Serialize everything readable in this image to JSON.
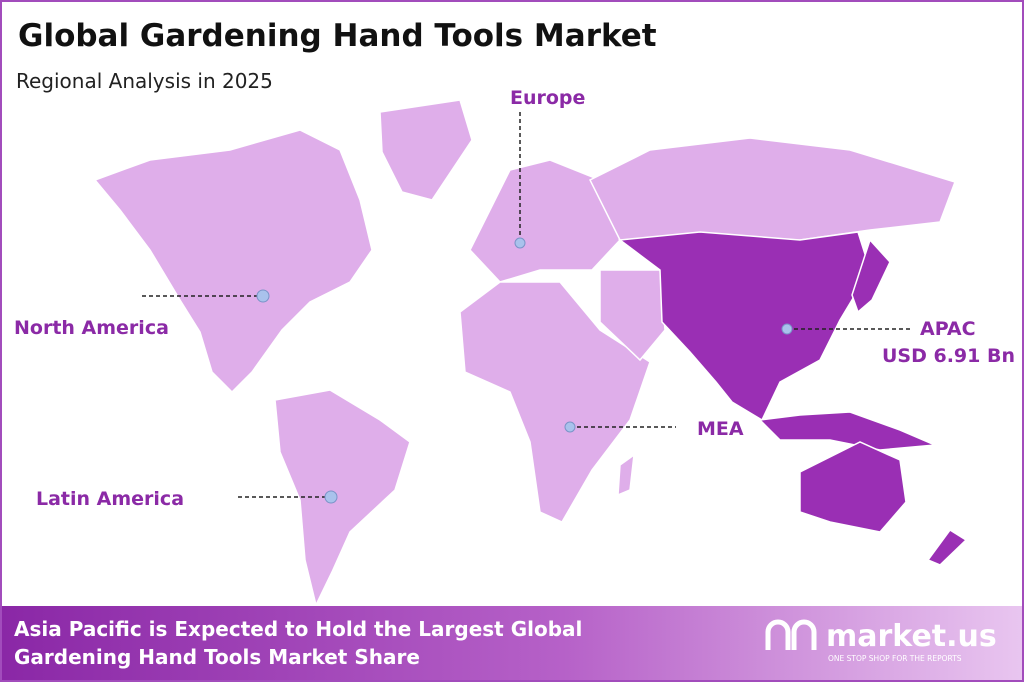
{
  "header": {
    "title": "Global Gardening Hand Tools Market",
    "subtitle": "Regional Analysis in 2025"
  },
  "regions": [
    {
      "label": "Europe"
    },
    {
      "label": "North America"
    },
    {
      "label": "Latin America"
    },
    {
      "label": "MEA"
    },
    {
      "label": "APAC",
      "value": "USD 6.91 Bn"
    }
  ],
  "footer": {
    "lines": [
      "Asia Pacific is Expected to Hold the Largest Global",
      "Gardening Hand Tools Market Share"
    ],
    "brand": "market.us",
    "tagline": "ONE STOP SHOP FOR THE REPORTS"
  }
}
